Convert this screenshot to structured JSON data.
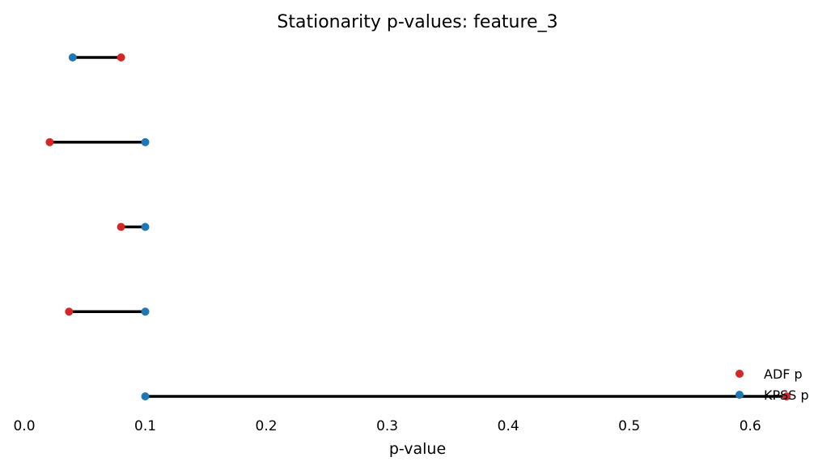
{
  "chart_data": {
    "type": "scatter",
    "title": "Stationarity p-values: feature_3",
    "xlabel": "p-value",
    "ylabel": "",
    "xlim": [
      0.0,
      0.65
    ],
    "xticks": [
      "0.0",
      "0.1",
      "0.2",
      "0.3",
      "0.4",
      "0.5",
      "0.6"
    ],
    "grid": false,
    "legend_position": "lower-right",
    "rows": [
      {
        "adf": 0.63,
        "kpss": 0.1
      },
      {
        "adf": 0.037,
        "kpss": 0.1
      },
      {
        "adf": 0.08,
        "kpss": 0.1
      },
      {
        "adf": 0.021,
        "kpss": 0.1
      },
      {
        "adf": 0.08,
        "kpss": 0.04
      }
    ],
    "series": [
      {
        "name": "ADF p",
        "key": "adf",
        "color": "#d62728"
      },
      {
        "name": "KPSS p",
        "key": "kpss",
        "color": "#1f77b4"
      }
    ],
    "connector_color": "#000000"
  }
}
